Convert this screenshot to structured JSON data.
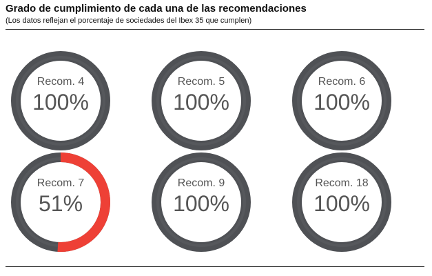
{
  "header": {
    "title": "Grado de cumplimiento de cada una de las recomendaciones",
    "subtitle": "(Los datos reflejan el porcentaje de sociedades del Ibex 35 que cumplen)"
  },
  "colors": {
    "track": "#4f5155",
    "track_inner": "#5b5d61",
    "highlight": "#ee4036",
    "text": "#555555"
  },
  "chart_data": {
    "type": "donut",
    "title": "Grado de cumplimiento de cada una de las recomendaciones",
    "subtitle": "(Los datos reflejan el porcentaje de sociedades del Ibex 35 que cumplen)",
    "unit": "%",
    "items": [
      {
        "label": "Recom. 4",
        "value": 100,
        "value_label": "100%"
      },
      {
        "label": "Recom. 5",
        "value": 100,
        "value_label": "100%"
      },
      {
        "label": "Recom. 6",
        "value": 100,
        "value_label": "100%"
      },
      {
        "label": "Recom. 7",
        "value": 51,
        "value_label": "51%"
      },
      {
        "label": "Recom. 9",
        "value": 100,
        "value_label": "100%"
      },
      {
        "label": "Recom. 18",
        "value": 100,
        "value_label": "100%"
      }
    ]
  }
}
